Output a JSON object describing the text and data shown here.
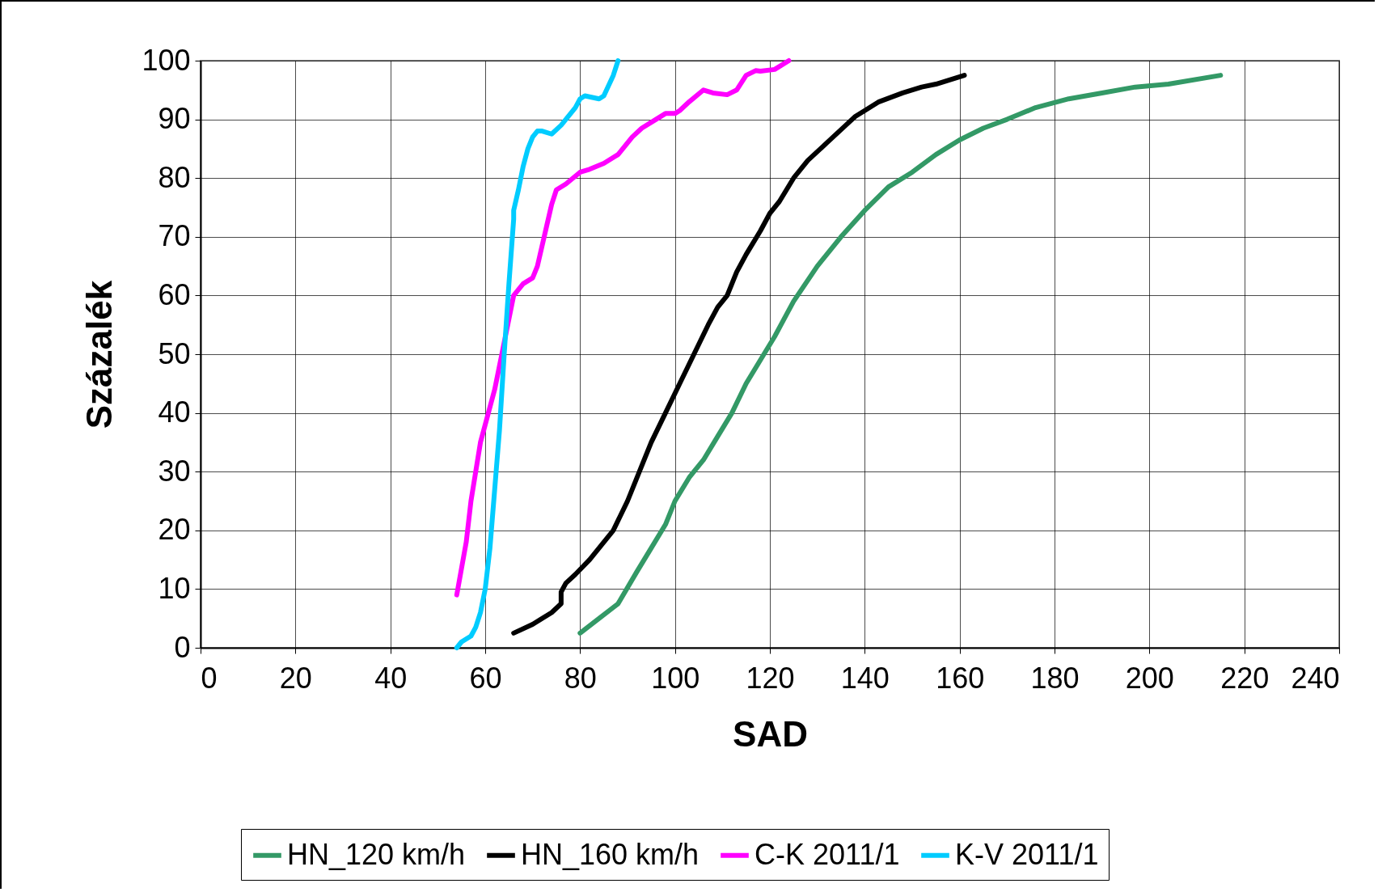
{
  "chart_data": {
    "type": "line",
    "xlabel": "SAD",
    "ylabel": "Százalék",
    "xlim": [
      0,
      240
    ],
    "xticks": [
      0,
      20,
      40,
      60,
      80,
      100,
      120,
      140,
      160,
      180,
      200,
      220,
      240
    ],
    "ylim": [
      0,
      100
    ],
    "yticks": [
      0,
      10,
      20,
      30,
      40,
      50,
      60,
      70,
      80,
      90,
      100
    ],
    "grid": true,
    "legend": "bottom",
    "marker": "none",
    "line_style": "solid",
    "series": [
      {
        "name": "HN_120 km/h",
        "color": "#339966",
        "x": [
          80,
          88,
          92,
          95,
          98,
          100,
          103,
          106,
          109,
          112,
          115,
          118,
          121,
          123,
          125,
          130,
          135,
          140,
          145,
          150,
          155,
          160,
          165,
          170,
          173,
          176,
          183,
          190,
          197,
          204,
          215
        ],
        "values": [
          2.5,
          7.5,
          13,
          17,
          21,
          25,
          29,
          32,
          36,
          40,
          45,
          49,
          53,
          56,
          59,
          65,
          70,
          74.5,
          78.5,
          81,
          84,
          86.5,
          88.5,
          90,
          91,
          92,
          93.5,
          94.5,
          95.5,
          96,
          97.5
        ]
      },
      {
        "name": "HN_160 km/h",
        "color": "#000000",
        "x": [
          66,
          70,
          74,
          76,
          76,
          77,
          79,
          82,
          85,
          87,
          90,
          93,
          95,
          98,
          101,
          104,
          107,
          109,
          111,
          113,
          115,
          118,
          120,
          122,
          125,
          128,
          132,
          136,
          138,
          140,
          143,
          148,
          152,
          155,
          161
        ],
        "values": [
          2.5,
          4,
          6,
          7.5,
          9.5,
          11,
          12.5,
          15,
          18,
          20,
          25,
          31,
          35,
          40,
          45,
          50,
          55,
          58,
          60,
          64,
          67,
          71,
          74,
          76,
          80,
          83,
          86,
          89,
          90.5,
          91.5,
          93,
          94.5,
          95.5,
          96,
          97.5
        ]
      },
      {
        "name": "C-K 2011/1",
        "color": "#ff00ff",
        "x": [
          54,
          56,
          57,
          58,
          59,
          60,
          62,
          64,
          65,
          66,
          68,
          70,
          71,
          73,
          74,
          75,
          77,
          80,
          82,
          85,
          88,
          89,
          91,
          93,
          96,
          98,
          100,
          101,
          103,
          106,
          108,
          111,
          113,
          115,
          117,
          118,
          121,
          124
        ],
        "values": [
          9,
          18,
          25,
          30,
          35,
          38,
          44,
          52,
          56,
          60,
          62,
          63,
          65,
          72,
          75.5,
          78,
          79,
          81,
          81.5,
          82.5,
          84,
          85,
          87,
          88.5,
          90,
          91,
          91,
          91.5,
          93,
          95,
          94.5,
          94.2,
          95,
          97.5,
          98.3,
          98.2,
          98.5,
          100
        ]
      },
      {
        "name": "K-V 2011/1",
        "color": "#00ccff",
        "x": [
          54,
          55,
          57,
          58,
          59,
          60,
          61,
          62,
          63,
          64,
          65,
          66,
          66,
          67,
          68,
          69,
          70,
          71,
          72,
          74,
          76,
          79,
          80,
          81,
          84,
          85,
          87,
          88
        ],
        "values": [
          0,
          1,
          2,
          3.5,
          6,
          10,
          17,
          27,
          37,
          50,
          62,
          73,
          74.5,
          78,
          82,
          85,
          87,
          88,
          88,
          87.5,
          89,
          92,
          93.5,
          94,
          93.5,
          94,
          97.5,
          100
        ]
      }
    ]
  }
}
